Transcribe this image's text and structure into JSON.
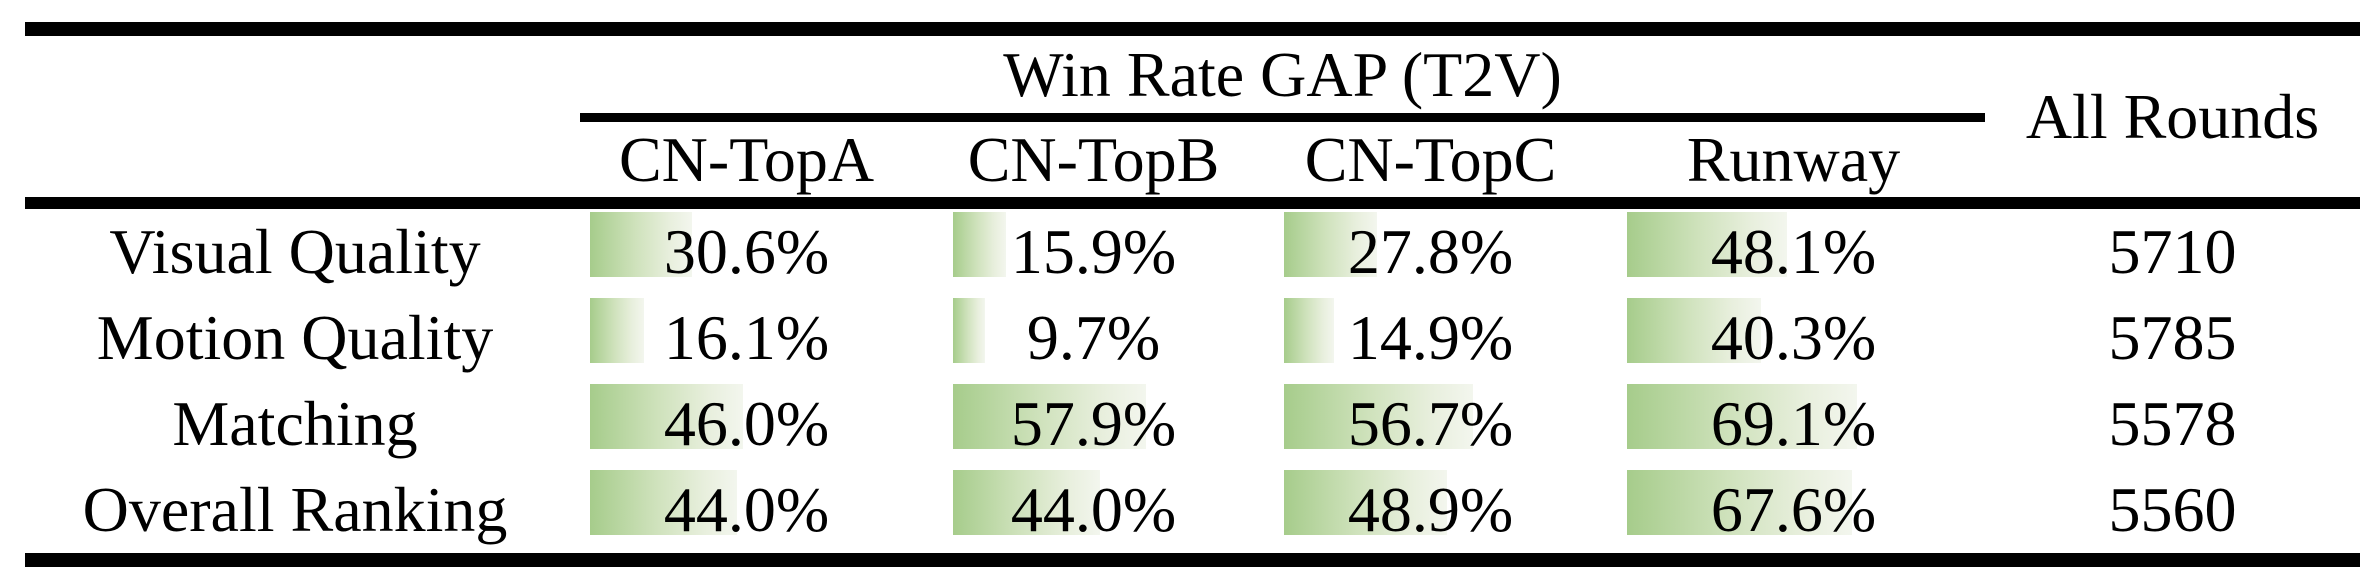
{
  "table": {
    "group_header": "Win Rate GAP (T2V)",
    "all_rounds_header": "All Rounds",
    "columns": [
      "CN-TopA",
      "CN-TopB",
      "CN-TopC",
      "Runway"
    ],
    "rows": [
      {
        "label": "Visual Quality",
        "cells": [
          {
            "text": "30.6%",
            "value": 30.6
          },
          {
            "text": "15.9%",
            "value": 15.9
          },
          {
            "text": "27.8%",
            "value": 27.8
          },
          {
            "text": "48.1%",
            "value": 48.1
          }
        ],
        "all_rounds": "5710"
      },
      {
        "label": "Motion Quality",
        "cells": [
          {
            "text": "16.1%",
            "value": 16.1
          },
          {
            "text": "9.7%",
            "value": 9.7
          },
          {
            "text": "14.9%",
            "value": 14.9
          },
          {
            "text": "40.3%",
            "value": 40.3
          }
        ],
        "all_rounds": "5785"
      },
      {
        "label": "Matching",
        "cells": [
          {
            "text": "46.0%",
            "value": 46.0
          },
          {
            "text": "57.9%",
            "value": 57.9
          },
          {
            "text": "56.7%",
            "value": 56.7
          },
          {
            "text": "69.1%",
            "value": 69.1
          }
        ],
        "all_rounds": "5578"
      },
      {
        "label": "Overall Ranking",
        "cells": [
          {
            "text": "44.0%",
            "value": 44.0
          },
          {
            "text": "44.0%",
            "value": 44.0
          },
          {
            "text": "48.9%",
            "value": 48.9
          },
          {
            "text": "67.6%",
            "value": 67.6
          }
        ],
        "all_rounds": "5560"
      }
    ]
  },
  "colors": {
    "rule": "#000000",
    "bar_gradient_start": "#a6cc8b",
    "bar_gradient_end": "#f3f6ee"
  },
  "chart_data": {
    "type": "table",
    "title": "Win Rate GAP (T2V)",
    "categories": [
      "Visual Quality",
      "Motion Quality",
      "Matching",
      "Overall Ranking"
    ],
    "series": [
      {
        "name": "CN-TopA",
        "values": [
          30.6,
          16.1,
          46.0,
          44.0
        ]
      },
      {
        "name": "CN-TopB",
        "values": [
          15.9,
          9.7,
          57.9,
          44.0
        ]
      },
      {
        "name": "CN-TopC",
        "values": [
          27.8,
          14.9,
          56.7,
          48.9
        ]
      },
      {
        "name": "Runway",
        "values": [
          48.1,
          40.3,
          69.1,
          67.6
        ]
      }
    ],
    "all_rounds": [
      5710,
      5785,
      5578,
      5560
    ],
    "unit": "%",
    "note_layout": "in-cell horizontal bars, green gradient, width proportional to percent"
  }
}
